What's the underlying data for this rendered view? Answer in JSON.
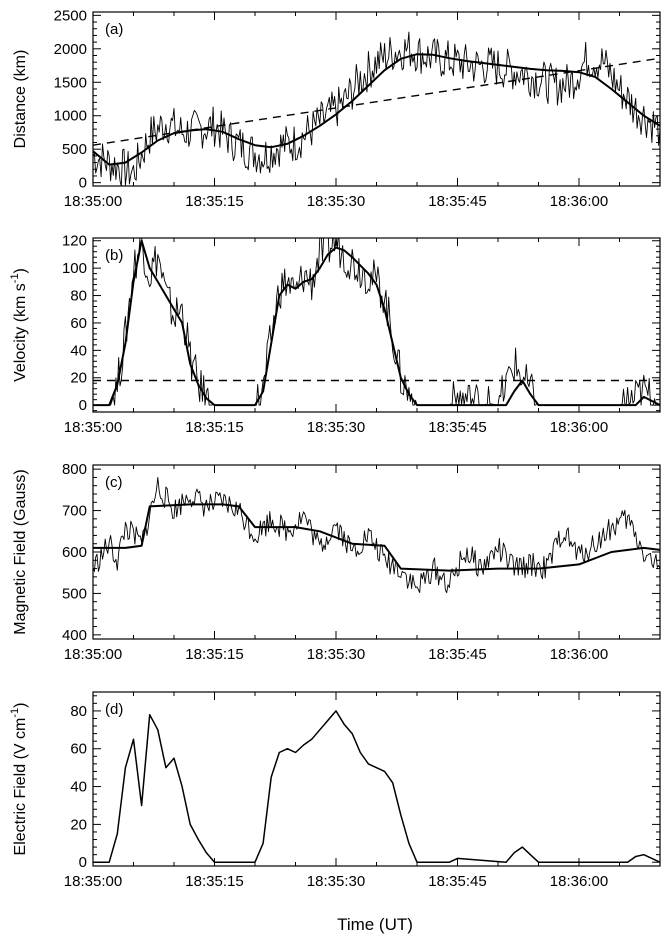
{
  "xlabel": "Time (UT)",
  "x_ticks": [
    "18:35:00",
    "18:35:15",
    "18:35:30",
    "18:35:45",
    "18:36:00"
  ],
  "chart_data": [
    {
      "type": "line",
      "panel": "(a)",
      "ylabel": "Distance (km)",
      "xlim": [
        "18:35:00",
        "18:36:10"
      ],
      "ylim": [
        -50,
        2550
      ],
      "yticks": [
        0,
        500,
        1000,
        1500,
        2000,
        2500
      ],
      "grid": false,
      "series": [
        {
          "role": "raw",
          "x": [
            "18:35:00",
            "18:35:03",
            "18:35:05",
            "18:35:07",
            "18:35:09",
            "18:35:11",
            "18:35:13",
            "18:35:15",
            "18:35:17",
            "18:35:19",
            "18:35:21",
            "18:35:23",
            "18:35:25",
            "18:35:27",
            "18:35:29",
            "18:35:31",
            "18:35:33",
            "18:35:35",
            "18:35:37",
            "18:35:39",
            "18:35:41",
            "18:35:43",
            "18:35:45",
            "18:35:47",
            "18:35:49",
            "18:35:51",
            "18:35:53",
            "18:35:55",
            "18:35:57",
            "18:35:59",
            "18:36:01",
            "18:36:03",
            "18:36:05",
            "18:36:07",
            "18:36:10"
          ],
          "values": [
            400,
            250,
            150,
            700,
            900,
            750,
            800,
            850,
            650,
            500,
            400,
            550,
            600,
            800,
            1000,
            1200,
            1550,
            1800,
            1950,
            2000,
            1900,
            1850,
            1800,
            1750,
            1750,
            1700,
            1650,
            1550,
            1450,
            1500,
            1850,
            1800,
            1400,
            1100,
            800
          ]
        },
        {
          "role": "smoothed",
          "x": [
            "18:35:00",
            "18:35:02",
            "18:35:04",
            "18:35:06",
            "18:35:08",
            "18:35:10",
            "18:35:12",
            "18:35:14",
            "18:35:16",
            "18:35:18",
            "18:35:20",
            "18:35:22",
            "18:35:24",
            "18:35:26",
            "18:35:28",
            "18:35:30",
            "18:35:32",
            "18:35:34",
            "18:35:36",
            "18:35:38",
            "18:35:40",
            "18:35:42",
            "18:35:44",
            "18:35:46",
            "18:35:48",
            "18:35:50",
            "18:35:52",
            "18:35:54",
            "18:35:56",
            "18:35:58",
            "18:36:00",
            "18:36:02",
            "18:36:04",
            "18:36:06",
            "18:36:08",
            "18:36:10"
          ],
          "values": [
            470,
            270,
            300,
            450,
            630,
            740,
            780,
            800,
            760,
            650,
            560,
            530,
            580,
            700,
            850,
            1020,
            1220,
            1450,
            1680,
            1850,
            1920,
            1910,
            1860,
            1820,
            1790,
            1760,
            1730,
            1700,
            1680,
            1670,
            1650,
            1580,
            1400,
            1200,
            1000,
            850
          ]
        },
        {
          "role": "linear-fit",
          "x": [
            "18:35:00",
            "18:36:10"
          ],
          "values": [
            560,
            1860
          ]
        }
      ]
    },
    {
      "type": "line",
      "panel": "(b)",
      "ylabel": "Velocity (km s",
      "ylabel_sup": "-1",
      "ylabel_end": ")",
      "xlim": [
        "18:35:00",
        "18:36:10"
      ],
      "ylim": [
        -5,
        122
      ],
      "yticks": [
        0,
        20,
        40,
        60,
        80,
        100,
        120
      ],
      "threshold": 18,
      "grid": false,
      "series": [
        {
          "role": "raw",
          "x": [
            "18:35:00",
            "18:35:02",
            "18:35:03",
            "18:35:04",
            "18:35:05",
            "18:35:06",
            "18:35:07",
            "18:35:08",
            "18:35:09",
            "18:35:10",
            "18:35:11",
            "18:35:12",
            "18:35:13",
            "18:35:14",
            "18:35:15",
            "18:35:17",
            "18:35:19",
            "18:35:20",
            "18:35:21",
            "18:35:22",
            "18:35:23",
            "18:35:24",
            "18:35:25",
            "18:35:26",
            "18:35:27",
            "18:35:28",
            "18:35:29",
            "18:35:30",
            "18:35:31",
            "18:35:32",
            "18:35:33",
            "18:35:34",
            "18:35:35",
            "18:35:36",
            "18:35:37",
            "18:35:38",
            "18:35:39",
            "18:35:40",
            "18:35:44",
            "18:35:45",
            "18:35:50",
            "18:35:51",
            "18:35:52",
            "18:35:53",
            "18:35:54",
            "18:35:55",
            "18:36:05",
            "18:36:07",
            "18:36:08",
            "18:36:10"
          ],
          "values": [
            0,
            0,
            15,
            50,
            100,
            120,
            95,
            110,
            80,
            65,
            70,
            35,
            15,
            5,
            0,
            0,
            0,
            0,
            10,
            50,
            85,
            90,
            80,
            95,
            90,
            110,
            115,
            120,
            110,
            105,
            100,
            95,
            90,
            80,
            50,
            20,
            8,
            0,
            0,
            5,
            0,
            15,
            30,
            20,
            10,
            0,
            0,
            5,
            10,
            0
          ]
        },
        {
          "role": "smoothed",
          "x": [
            "18:35:00",
            "18:35:02",
            "18:35:03",
            "18:35:04",
            "18:35:05",
            "18:35:06",
            "18:35:07",
            "18:35:08",
            "18:35:09",
            "18:35:10",
            "18:35:11",
            "18:35:12",
            "18:35:13",
            "18:35:14",
            "18:35:15",
            "18:35:19",
            "18:35:20",
            "18:35:21",
            "18:35:22",
            "18:35:23",
            "18:35:24",
            "18:35:25",
            "18:35:26",
            "18:35:27",
            "18:35:28",
            "18:35:29",
            "18:35:30",
            "18:35:31",
            "18:35:32",
            "18:35:33",
            "18:35:34",
            "18:35:35",
            "18:35:36",
            "18:35:37",
            "18:35:38",
            "18:35:39",
            "18:35:40",
            "18:35:51",
            "18:35:52",
            "18:35:53",
            "18:35:54",
            "18:35:55",
            "18:36:07",
            "18:36:08",
            "18:36:10"
          ],
          "values": [
            0,
            0,
            15,
            45,
            90,
            120,
            100,
            90,
            80,
            70,
            60,
            30,
            15,
            5,
            0,
            0,
            0,
            10,
            45,
            80,
            88,
            85,
            90,
            92,
            100,
            110,
            115,
            113,
            108,
            102,
            96,
            88,
            70,
            45,
            20,
            8,
            0,
            0,
            10,
            18,
            8,
            0,
            0,
            6,
            0
          ]
        }
      ]
    },
    {
      "type": "line",
      "panel": "(c)",
      "ylabel": "Magnetic Field (Gauss)",
      "xlim": [
        "18:35:00",
        "18:36:10"
      ],
      "ylim": [
        390,
        810
      ],
      "yticks": [
        400,
        500,
        600,
        700,
        800
      ],
      "grid": false,
      "series": [
        {
          "role": "raw",
          "x": [
            "18:35:00",
            "18:35:02",
            "18:35:03",
            "18:35:04",
            "18:35:06",
            "18:35:08",
            "18:35:10",
            "18:35:12",
            "18:35:14",
            "18:35:16",
            "18:35:18",
            "18:35:20",
            "18:35:22",
            "18:35:24",
            "18:35:26",
            "18:35:28",
            "18:35:30",
            "18:35:32",
            "18:35:34",
            "18:35:36",
            "18:35:38",
            "18:35:40",
            "18:35:42",
            "18:35:44",
            "18:35:46",
            "18:35:48",
            "18:35:50",
            "18:35:52",
            "18:35:54",
            "18:35:56",
            "18:35:58",
            "18:36:00",
            "18:36:02",
            "18:36:04",
            "18:36:06",
            "18:36:08",
            "18:36:10"
          ],
          "values": [
            560,
            620,
            580,
            660,
            620,
            760,
            700,
            740,
            710,
            720,
            700,
            640,
            680,
            650,
            690,
            610,
            670,
            600,
            640,
            580,
            560,
            510,
            560,
            520,
            600,
            560,
            610,
            560,
            570,
            560,
            650,
            590,
            620,
            660,
            680,
            600,
            560
          ]
        },
        {
          "role": "smoothed",
          "x": [
            "18:35:00",
            "18:35:04",
            "18:35:06",
            "18:35:07",
            "18:35:12",
            "18:35:16",
            "18:35:18",
            "18:35:20",
            "18:35:25",
            "18:35:28",
            "18:35:32",
            "18:35:36",
            "18:35:38",
            "18:35:44",
            "18:35:50",
            "18:35:55",
            "18:36:00",
            "18:36:04",
            "18:36:08",
            "18:36:10"
          ],
          "values": [
            610,
            610,
            615,
            710,
            715,
            715,
            710,
            660,
            660,
            650,
            620,
            615,
            560,
            555,
            560,
            560,
            570,
            600,
            610,
            605
          ]
        }
      ]
    },
    {
      "type": "line",
      "panel": "(d)",
      "ylabel": "Electric Field (V cm",
      "ylabel_sup": "-1",
      "ylabel_end": ")",
      "xlim": [
        "18:35:00",
        "18:36:10"
      ],
      "ylim": [
        -2,
        90
      ],
      "yticks": [
        0,
        20,
        40,
        60,
        80
      ],
      "grid": false,
      "series": [
        {
          "role": "measured",
          "x": [
            "18:35:00",
            "18:35:02",
            "18:35:03",
            "18:35:04",
            "18:35:05",
            "18:35:06",
            "18:35:07",
            "18:35:08",
            "18:35:09",
            "18:35:10",
            "18:35:11",
            "18:35:12",
            "18:35:13",
            "18:35:14",
            "18:35:15",
            "18:35:19",
            "18:35:20",
            "18:35:21",
            "18:35:22",
            "18:35:23",
            "18:35:24",
            "18:35:25",
            "18:35:26",
            "18:35:27",
            "18:35:28",
            "18:35:29",
            "18:35:30",
            "18:35:31",
            "18:35:32",
            "18:35:33",
            "18:35:34",
            "18:35:35",
            "18:35:36",
            "18:35:37",
            "18:35:38",
            "18:35:39",
            "18:35:40",
            "18:35:44",
            "18:35:45",
            "18:35:51",
            "18:35:52",
            "18:35:53",
            "18:35:54",
            "18:35:55",
            "18:36:06",
            "18:36:07",
            "18:36:08",
            "18:36:10"
          ],
          "values": [
            0,
            0,
            15,
            50,
            65,
            30,
            78,
            70,
            50,
            55,
            40,
            20,
            12,
            5,
            0,
            0,
            0,
            10,
            45,
            58,
            60,
            58,
            62,
            65,
            70,
            75,
            80,
            73,
            68,
            58,
            52,
            50,
            48,
            42,
            25,
            10,
            0,
            0,
            2,
            0,
            5,
            8,
            4,
            0,
            0,
            3,
            4,
            0
          ]
        }
      ]
    }
  ]
}
